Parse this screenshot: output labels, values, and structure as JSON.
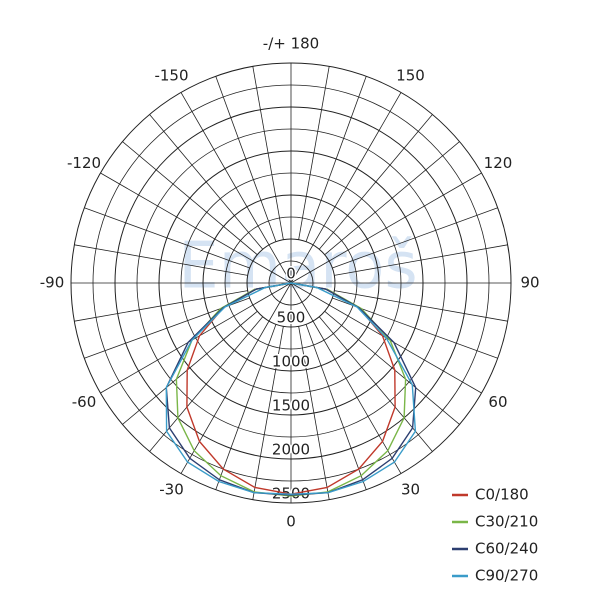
{
  "chart_data": {
    "type": "polar",
    "watermark": "Emaroš",
    "x": [
      -90,
      -80,
      -70,
      -60,
      -50,
      -40,
      -30,
      -20,
      -10,
      0,
      10,
      20,
      30,
      40,
      50,
      60,
      70,
      80,
      90
    ],
    "series": [
      {
        "name": "C0/180",
        "color": "#c0392b",
        "values": [
          0,
          420,
          820,
          1200,
          1540,
          1840,
          2080,
          2250,
          2360,
          2400,
          2360,
          2250,
          2080,
          1840,
          1540,
          1200,
          820,
          420,
          0
        ]
      },
      {
        "name": "C30/210",
        "color": "#7ab648",
        "values": [
          0,
          420,
          850,
          1300,
          1700,
          2000,
          2200,
          2330,
          2410,
          2420,
          2410,
          2330,
          2200,
          2000,
          1700,
          1300,
          850,
          420,
          0
        ]
      },
      {
        "name": "C60/240",
        "color": "#2c3e70",
        "values": [
          0,
          400,
          820,
          1350,
          1850,
          2150,
          2300,
          2380,
          2420,
          2410,
          2420,
          2380,
          2300,
          2150,
          1850,
          1350,
          820,
          400,
          0
        ]
      },
      {
        "name": "C90/270",
        "color": "#3a9cc9",
        "values": [
          0,
          300,
          800,
          1300,
          1850,
          2200,
          2350,
          2400,
          2420,
          2400,
          2420,
          2400,
          2350,
          2200,
          1800,
          1250,
          800,
          300,
          0
        ]
      }
    ],
    "ylim": [
      0,
      2500
    ],
    "yticks": [
      0,
      500,
      1000,
      1500,
      2000,
      2500
    ],
    "xticks": [
      {
        "value": 180,
        "label": "-/+ 180"
      },
      -150,
      -120,
      -90,
      -60,
      -30,
      0,
      30,
      60,
      90,
      120,
      150
    ]
  }
}
